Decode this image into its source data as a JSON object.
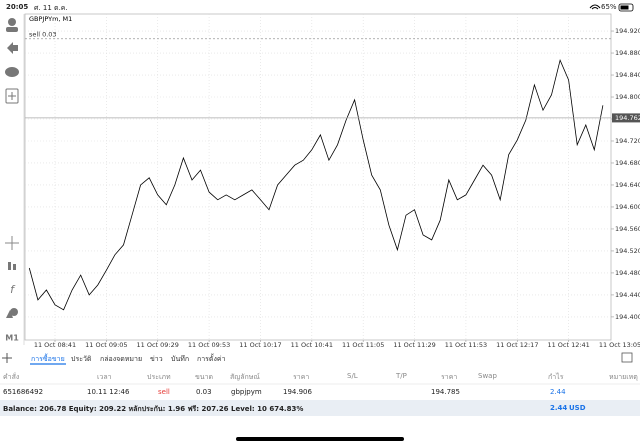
{
  "status_bar": {
    "time": "20:05",
    "date": "ศ. 11 ต.ค.",
    "battery": "65%"
  },
  "chart_data": {
    "type": "line",
    "title": "GBPJPYm, M1",
    "color": "#000000",
    "grid": true,
    "x": [
      "11 Oct 08:29",
      "11 Oct 08:33",
      "11 Oct 08:37",
      "11 Oct 08:41",
      "11 Oct 08:45",
      "11 Oct 08:49",
      "11 Oct 08:53",
      "11 Oct 08:57",
      "11 Oct 09:01",
      "11 Oct 09:05",
      "11 Oct 09:09",
      "11 Oct 09:13",
      "11 Oct 09:17",
      "11 Oct 09:21",
      "11 Oct 09:25",
      "11 Oct 09:29",
      "11 Oct 09:33",
      "11 Oct 09:37",
      "11 Oct 09:41",
      "11 Oct 09:45",
      "11 Oct 09:49",
      "11 Oct 09:53",
      "11 Oct 09:57",
      "11 Oct 10:01",
      "11 Oct 10:05",
      "11 Oct 10:09",
      "11 Oct 10:13",
      "11 Oct 10:17",
      "11 Oct 10:21",
      "11 Oct 10:25",
      "11 Oct 10:29",
      "11 Oct 10:33",
      "11 Oct 10:37",
      "11 Oct 10:41",
      "11 Oct 10:45",
      "11 Oct 10:49",
      "11 Oct 10:53",
      "11 Oct 10:57",
      "11 Oct 11:01",
      "11 Oct 11:05",
      "11 Oct 11:09",
      "11 Oct 11:13",
      "11 Oct 11:17",
      "11 Oct 11:21",
      "11 Oct 11:25",
      "11 Oct 11:29",
      "11 Oct 11:33",
      "11 Oct 11:37",
      "11 Oct 11:41",
      "11 Oct 11:45",
      "11 Oct 11:49",
      "11 Oct 11:53",
      "11 Oct 11:57",
      "11 Oct 12:01",
      "11 Oct 12:05",
      "11 Oct 12:09",
      "11 Oct 12:13",
      "11 Oct 12:17",
      "11 Oct 12:21",
      "11 Oct 12:25",
      "11 Oct 12:29",
      "11 Oct 12:33",
      "11 Oct 12:37",
      "11 Oct 12:41",
      "11 Oct 12:45",
      "11 Oct 12:49",
      "11 Oct 12:53",
      "11 Oct 12:57"
    ],
    "values": [
      194.489,
      194.431,
      194.449,
      194.422,
      194.413,
      194.449,
      194.476,
      194.44,
      194.458,
      194.485,
      194.513,
      194.531,
      194.585,
      194.64,
      194.653,
      194.622,
      194.604,
      194.64,
      194.689,
      194.649,
      194.667,
      194.627,
      194.613,
      194.622,
      194.613,
      194.622,
      194.631,
      194.613,
      194.595,
      194.64,
      194.658,
      194.676,
      194.685,
      194.704,
      194.731,
      194.685,
      194.713,
      194.758,
      194.795,
      194.722,
      194.658,
      194.631,
      194.567,
      194.522,
      194.585,
      194.595,
      194.549,
      194.54,
      194.576,
      194.649,
      194.613,
      194.622,
      194.649,
      194.676,
      194.658,
      194.613,
      194.695,
      194.722,
      194.758,
      194.822,
      194.776,
      194.804,
      194.867,
      194.831,
      194.713,
      194.749,
      194.704,
      194.785
    ],
    "ylim": [
      194.358,
      194.951
    ],
    "yticks": [
      {
        "value": 194.92,
        "label": "194.920"
      },
      {
        "value": 194.88,
        "label": "194.880"
      },
      {
        "value": 194.84,
        "label": "194.840"
      },
      {
        "value": 194.8,
        "label": "194.800"
      },
      {
        "value": 194.76,
        "label": "194.760"
      },
      {
        "value": 194.72,
        "label": "194.720"
      },
      {
        "value": 194.68,
        "label": "194.680"
      },
      {
        "value": 194.64,
        "label": "194.640"
      },
      {
        "value": 194.6,
        "label": "194.600"
      },
      {
        "value": 194.56,
        "label": "194.560"
      },
      {
        "value": 194.52,
        "label": "194.520"
      },
      {
        "value": 194.48,
        "label": "194.480"
      },
      {
        "value": 194.44,
        "label": "194.440"
      },
      {
        "value": 194.4,
        "label": "194.400"
      }
    ],
    "xticks": [
      "11 Oct 08:41",
      "11 Oct 09:05",
      "11 Oct 09:29",
      "11 Oct 09:53",
      "11 Oct 10:17",
      "11 Oct 10:41",
      "11 Oct 11:05",
      "11 Oct 11:29",
      "11 Oct 11:53",
      "11 Oct 12:17",
      "11 Oct 12:41",
      "11 Oct 13:05"
    ],
    "order_line": {
      "label": "sell 0.03",
      "value": 194.906
    },
    "bid": 194.762
  },
  "tabs": [
    "การซื้อขาย",
    "ประวัติ",
    "กล่องจดหมาย",
    "ข่าว",
    "บันทึก",
    "การตั้งค่า"
  ],
  "table": {
    "columns": [
      "คำสั่ง",
      "เวลา",
      "ประเภท",
      "ขนาด",
      "สัญลักษณ์",
      "ราคา",
      "S/L",
      "T/P",
      "ราคา",
      "Swap",
      "กำไร",
      "หมายเหตุ"
    ],
    "row": {
      "order": "651686492",
      "time": "10.11 12:46",
      "type": "sell",
      "size": "0.03",
      "symbol": "gbpjpym",
      "open_price": "194.906",
      "price": "194.785",
      "profit": "2.44"
    }
  },
  "summary": {
    "text": "Balance: 206.78 Equity: 209.22 หลักประกัน: 1.96 ฟรี: 207.26 Level: 10 674.83%",
    "total": "2.44",
    "currency": "USD"
  }
}
